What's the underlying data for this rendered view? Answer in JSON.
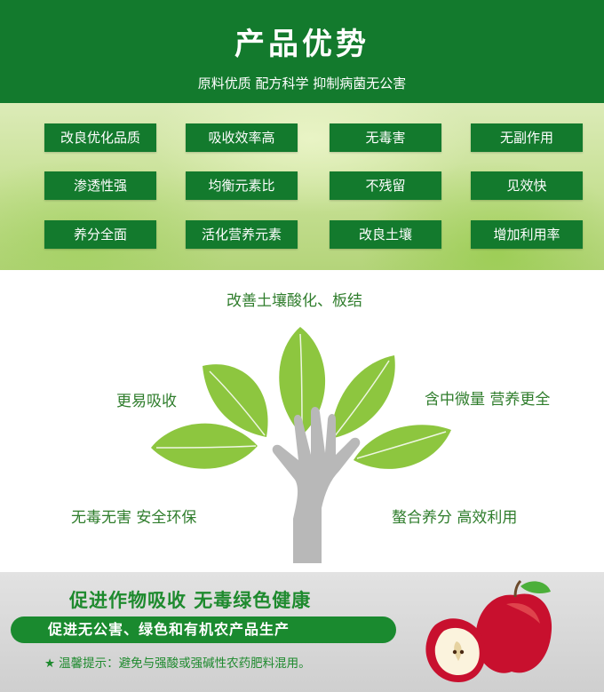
{
  "header": {
    "title": "产品优势",
    "subtitle": "原料优质  配方科学  抑制病菌无公害"
  },
  "features": [
    "改良优化品质",
    "吸收效率高",
    "无毒害",
    "无副作用",
    "渗透性强",
    "均衡元素比",
    "不残留",
    "见效快",
    "养分全面",
    "活化营养元素",
    "改良土壤",
    "增加利用率"
  ],
  "benefits": {
    "top": "改善土壤酸化、板结",
    "left_upper": "更易吸收",
    "right_upper": "含中微量   营养更全",
    "left_lower": "无毒无害    安全环保",
    "right_lower": "螯合养分   高效利用"
  },
  "bottom": {
    "slogan": "促进作物吸收    无毒绿色健康",
    "pill": "促进无公害、绿色和有机农产品生产",
    "tip_label": "温馨提示：",
    "tip_text": "避免与强酸或强碱性农药肥料混用。"
  },
  "colors": {
    "brand_green": "#137a2d",
    "leaf_green": "#8dc63f",
    "text_green": "#2f7d2c",
    "hand_gray": "#b5b5b5"
  },
  "icons": [
    "tree-hand-icon",
    "star-icon",
    "apple-icon"
  ]
}
